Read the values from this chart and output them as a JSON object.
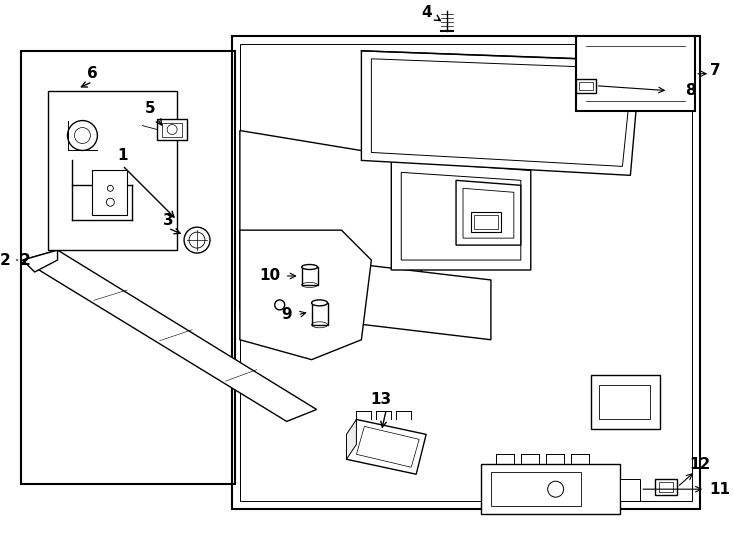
{
  "background_color": "#ffffff",
  "line_color": "#000000",
  "figure_width": 7.34,
  "figure_height": 5.4,
  "dpi": 100,
  "label_fontsize": 11,
  "label_fontweight": "bold"
}
